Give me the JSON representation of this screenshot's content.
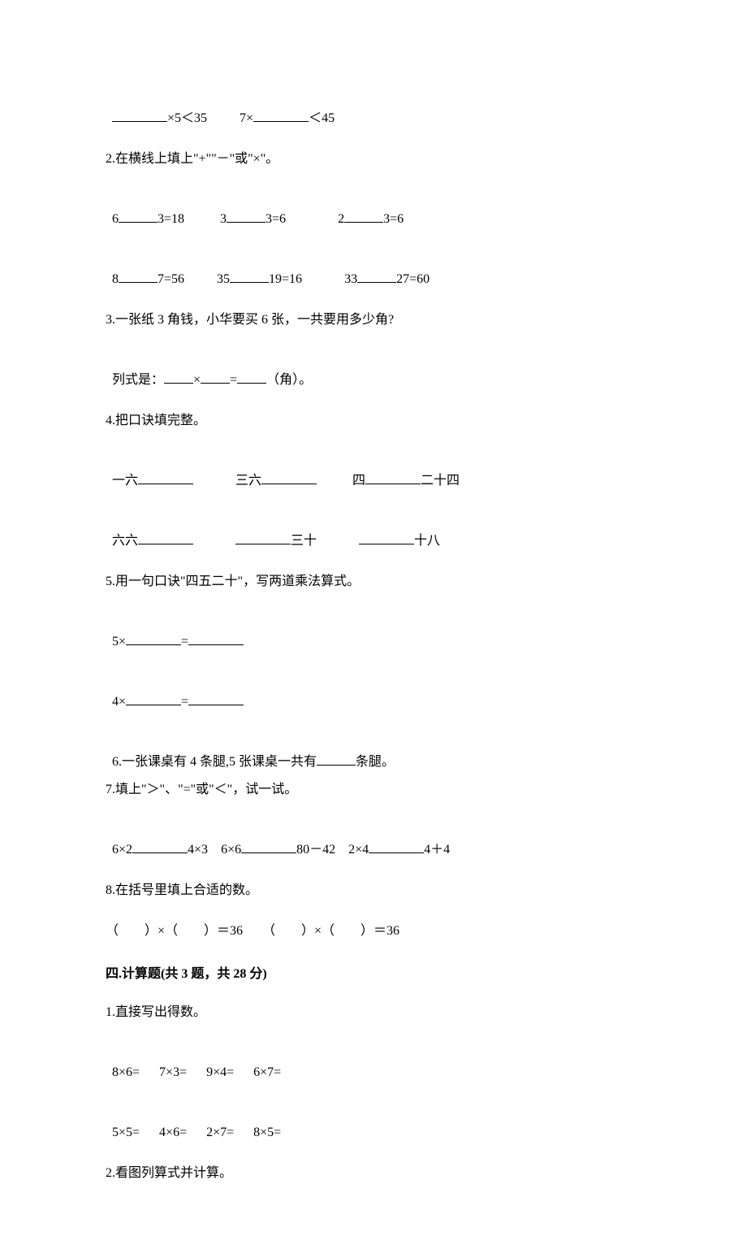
{
  "q1": {
    "left_suffix": "×5＜35",
    "right_prefix": "7×",
    "right_suffix": "＜45"
  },
  "q2": {
    "prompt": "2.在横线上填上\"+\"\"－\"或\"×\"。",
    "r1": {
      "a": "6",
      "b": "3=18",
      "c": "3",
      "d": "3=6",
      "e": "2",
      "f": "3=6"
    },
    "r2": {
      "a": "8",
      "b": "7=56",
      "c": "35",
      "d": "19=16",
      "e": "33",
      "f": "27=60"
    }
  },
  "q3": {
    "prompt": "3.一张纸 3 角钱，小华要买 6 张，一共要用多少角?",
    "eq_prefix": "列式是：",
    "eq_mid": "×",
    "eq_eq": "=",
    "eq_suffix": "（角）。"
  },
  "q4": {
    "prompt": "4.把口诀填完整。",
    "r1": {
      "a": "一六",
      "b": "三六",
      "c1": "四",
      "c2": "二十四"
    },
    "r2": {
      "a": "六六",
      "b": "三十",
      "c": "十八"
    }
  },
  "q5": {
    "prompt": "5.用一句口诀\"四五二十\"，写两道乘法算式。",
    "l1_prefix": "5×",
    "l1_eq": "=",
    "l2_prefix": "4×",
    "l2_eq": "="
  },
  "q6": {
    "prompt_a": "6.一张课桌有 4 条腿,5 张课桌一共有",
    "prompt_b": "条腿。"
  },
  "q7": {
    "prompt": "7.填上\"＞\"、\"=\"或\"＜\"，试一试。",
    "a1": "6×2",
    "a2": "4×3",
    "b1": "6×6",
    "b2": "80－42",
    "c1": "2×4",
    "c2": "4＋4"
  },
  "q8": {
    "prompt": "8.在括号里填上合适的数。",
    "expr": "（　　）×（　　）＝36　　（　　）×（　　）＝36"
  },
  "sec4": {
    "title": "四.计算题(共 3 题，共 28 分)",
    "q1_prompt": "1.直接写出得数。",
    "r1": {
      "a": "8×6=",
      "b": "7×3=",
      "c": "9×4=",
      "d": "6×7="
    },
    "r2": {
      "a": "5×5=",
      "b": "4×6=",
      "c": "2×7=",
      "d": "8×5="
    },
    "q2_prompt": "2.看图列算式并计算。"
  }
}
